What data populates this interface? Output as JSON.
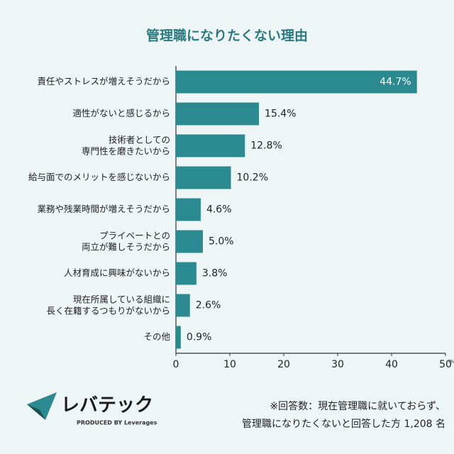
{
  "chart_data": {
    "type": "hbar",
    "title": "管理職になりたくない理由",
    "categories": [
      "責任やストレスが増えそうだから",
      "適性がないと感じるから",
      "技術者としての\n専門性を磨きたいから",
      "給与面でのメリットを感じないから",
      "業務や残業時間が増えそうだから",
      "プライベートとの\n両立が難しそうだから",
      "人材育成に興味がないから",
      "現在所属している組織に\n長く在籍するつもりがないから",
      "その他"
    ],
    "values": [
      44.7,
      15.4,
      12.8,
      10.2,
      4.6,
      5.0,
      3.8,
      2.6,
      0.9
    ],
    "value_labels": [
      "44.7%",
      "15.4%",
      "12.8%",
      "10.2%",
      "4.6%",
      "5.0%",
      "3.8%",
      "2.6%",
      "0.9%"
    ],
    "color": "#2b8a90",
    "xlim": [
      0,
      50
    ],
    "xticks": [
      0,
      10,
      20,
      30,
      40,
      50
    ],
    "x_unit": "(%)",
    "note": [
      "※回答数：現在管理職に就いておらず、",
      "管理職になりたくないと回答した方 1,208 名"
    ]
  },
  "logo": {
    "name": "レバテック",
    "tagline": "PRODUCED BY Leverages"
  }
}
